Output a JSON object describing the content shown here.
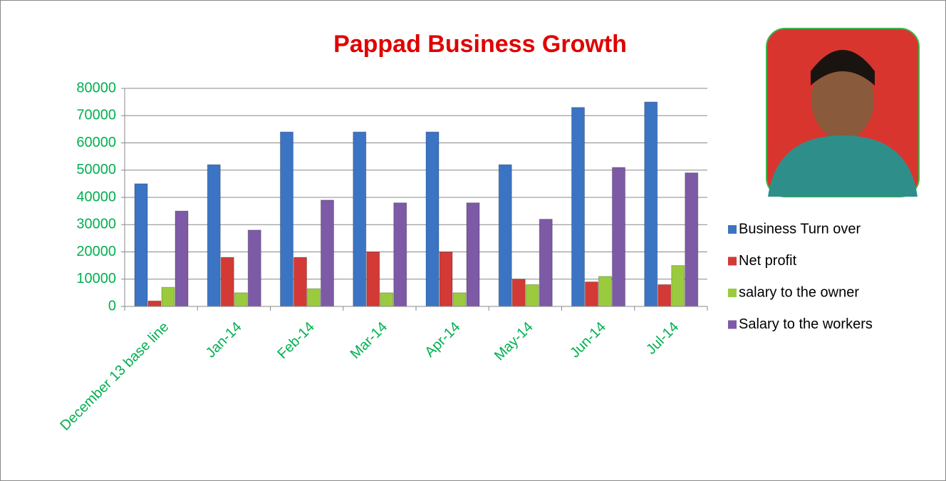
{
  "chart_data": {
    "type": "bar",
    "title": "Pappad Business Growth",
    "categories": [
      "December 13 base line",
      "Jan-14",
      "Feb-14",
      "Mar-14",
      "Apr-14",
      "May-14",
      "Jun-14",
      "Jul-14"
    ],
    "series": [
      {
        "name": "Business Turn over",
        "color": "#3c74c4",
        "values": [
          45000,
          52000,
          64000,
          64000,
          64000,
          52000,
          73000,
          75000
        ]
      },
      {
        "name": "Net profit",
        "color": "#d33a35",
        "values": [
          2000,
          18000,
          18000,
          20000,
          20000,
          10000,
          9000,
          8000
        ]
      },
      {
        "name": "salary to the owner",
        "color": "#9acb3f",
        "values": [
          7000,
          5000,
          6500,
          5000,
          5000,
          8000,
          11000,
          15000
        ]
      },
      {
        "name": "Salary to the workers",
        "color": "#7d5aa6",
        "values": [
          35000,
          28000,
          39000,
          38000,
          38000,
          32000,
          51000,
          49000
        ]
      }
    ],
    "ylim": [
      0,
      80000
    ],
    "yticks": [
      0,
      10000,
      20000,
      30000,
      40000,
      50000,
      60000,
      70000,
      80000
    ],
    "grid": true,
    "legend": "right"
  }
}
